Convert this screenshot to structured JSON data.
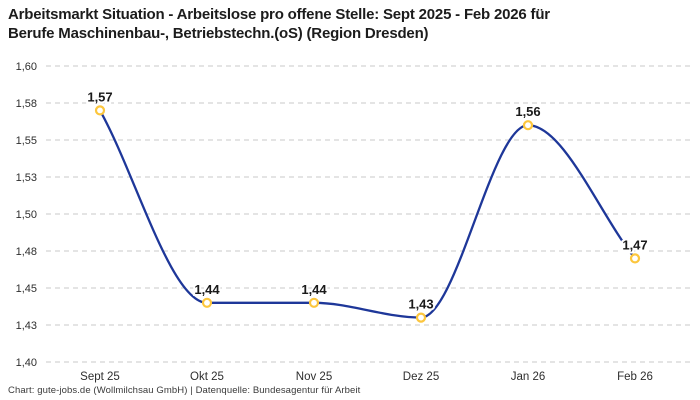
{
  "title": {
    "line1": "Arbeitsmarkt Situation - Arbeitslose pro offene Stelle: Sept 2025 - Feb 2026 für",
    "line2": "Berufe Maschinenbau-, Betriebstechn.(oS) (Region Dresden)"
  },
  "footer": "Chart: gute-jobs.de (Wollmilchsau GmbH) | Datenquelle: Bundesagentur für Arbeit",
  "chart_data": {
    "type": "line",
    "title": "Arbeitsmarkt Situation - Arbeitslose pro offene Stelle: Sept 2025 - Feb 2026 für Berufe Maschinenbau-, Betriebstechn.(oS) (Region Dresden)",
    "categories": [
      "Sept 25",
      "Okt 25",
      "Nov 25",
      "Dez 25",
      "Jan 26",
      "Feb 26"
    ],
    "values": [
      1.57,
      1.44,
      1.44,
      1.43,
      1.56,
      1.47
    ],
    "value_labels": [
      "1,57",
      "1,44",
      "1,44",
      "1,43",
      "1,56",
      "1,47"
    ],
    "xlabel": "",
    "ylabel": "",
    "ylim": [
      1.4,
      1.6
    ],
    "yticks": [
      {
        "value": 1.6,
        "label": "1,60"
      },
      {
        "value": 1.575,
        "label": "1,58"
      },
      {
        "value": 1.55,
        "label": "1,55"
      },
      {
        "value": 1.525,
        "label": "1,53"
      },
      {
        "value": 1.5,
        "label": "1,50"
      },
      {
        "value": 1.475,
        "label": "1,48"
      },
      {
        "value": 1.45,
        "label": "1,45"
      },
      {
        "value": 1.425,
        "label": "1,43"
      },
      {
        "value": 1.4,
        "label": "1,40"
      }
    ],
    "grid": "horizontal-dashed",
    "legend": "none",
    "curve": "smooth-monotone",
    "colors": {
      "line": "#1e3799",
      "marker_stroke": "#fcc63d",
      "marker_fill": "#ffffff",
      "grid": "#c9c9c9",
      "data_label": "#1a1a1a",
      "tick_label": "#2e2e2e",
      "title": "#1c1c1c",
      "footer": "#3a3a3a",
      "background": "#ffffff"
    }
  }
}
